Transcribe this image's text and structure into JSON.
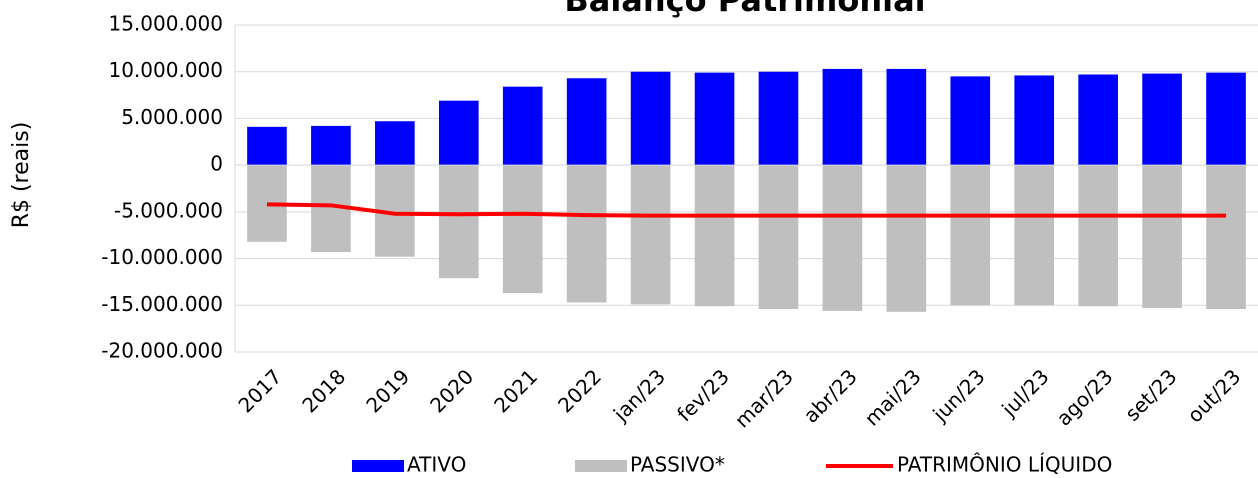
{
  "chart_data": {
    "type": "bar_line",
    "title": "Balanço Patrimonial",
    "y_axis_label": "R$ (reais)",
    "categories": [
      "2017",
      "2018",
      "2019",
      "2020",
      "2021",
      "2022",
      "jan/23",
      "fev/23",
      "mar/23",
      "abr/23",
      "mai/23",
      "jun/23",
      "jul/23",
      "ago/23",
      "set/23",
      "out/23"
    ],
    "series": [
      {
        "name": "ATIVO",
        "type": "bar",
        "color": "#0000ff",
        "values": [
          4100000,
          4200000,
          4700000,
          6900000,
          8400000,
          9300000,
          10000000,
          9900000,
          10000000,
          10300000,
          10300000,
          9500000,
          9600000,
          9700000,
          9800000,
          9900000
        ]
      },
      {
        "name": "PASSIVO*",
        "type": "bar",
        "color": "#bfbfbf",
        "values": [
          -8200000,
          -9300000,
          -9800000,
          -12100000,
          -13700000,
          -14700000,
          -14900000,
          -15100000,
          -15400000,
          -15600000,
          -15700000,
          -15000000,
          -15000000,
          -15100000,
          -15300000,
          -15400000
        ]
      },
      {
        "name": "PATRIMÔNIO LÍQUIDO",
        "type": "line",
        "color": "#ff0000",
        "values": [
          -4200000,
          -4300000,
          -5200000,
          -5250000,
          -5200000,
          -5350000,
          -5400000,
          -5400000,
          -5400000,
          -5400000,
          -5400000,
          -5400000,
          -5400000,
          -5400000,
          -5400000,
          -5400000
        ]
      }
    ],
    "ylim": [
      -20000000,
      15000000
    ],
    "yticks": [
      {
        "value": -20000000,
        "label": "-20.000.000"
      },
      {
        "value": -15000000,
        "label": "-15.000.000"
      },
      {
        "value": -10000000,
        "label": "-10.000.000"
      },
      {
        "value": -5000000,
        "label": "-5.000.000"
      },
      0,
      {
        "value": 5000000,
        "label": "5.000.000"
      },
      {
        "value": 10000000,
        "label": "10.000.000"
      },
      {
        "value": 15000000,
        "label": "15.000.000"
      }
    ],
    "negative_tick_color": "#ff0000",
    "grid": true,
    "legend": "bottom"
  }
}
